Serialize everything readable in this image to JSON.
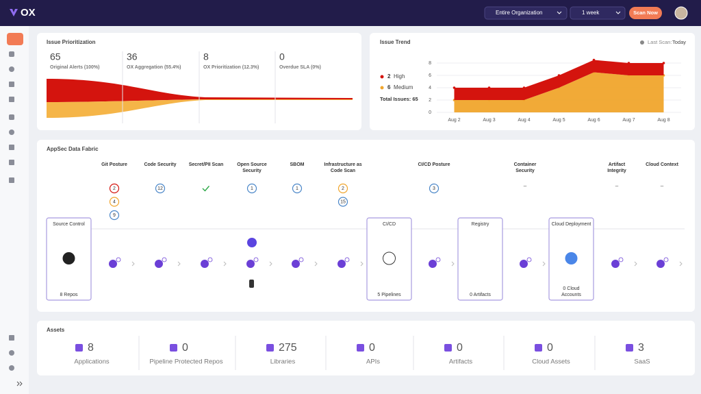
{
  "header": {
    "logo": "OX",
    "organization": "Entire Organization",
    "period": "1 week",
    "scan_button": "Scan Now"
  },
  "issue_prioritization": {
    "title": "Issue Prioritization",
    "stages": [
      {
        "value": 65,
        "label": "Original Alerts (100%)"
      },
      {
        "value": 36,
        "label": "OX Aggregation (55.4%)"
      },
      {
        "value": 8,
        "label": "OX Prioritization (12.3%)"
      },
      {
        "value": 0,
        "label": "Overdue SLA (0%)"
      }
    ]
  },
  "issue_trend": {
    "title": "Issue Trend",
    "last_scan_label": "Last Scan:",
    "last_scan": "Today",
    "total": "Total Issues: 65",
    "chart": {
      "type": "area",
      "stacked": true,
      "categories": [
        "Aug 2",
        "Aug 3",
        "Aug 4",
        "Aug 5",
        "Aug 6",
        "Aug 7",
        "Aug 8"
      ],
      "ylim": [
        0,
        9
      ],
      "yticks": [
        0,
        2,
        4,
        6,
        8
      ],
      "series": [
        {
          "name": "Medium",
          "count": 6,
          "color": "#f0a52c",
          "values": [
            2,
            2,
            2,
            4,
            6.5,
            6,
            6
          ]
        },
        {
          "name": "High",
          "count": 2,
          "color": "#d4140e",
          "values": [
            2,
            2,
            2,
            2,
            2,
            2,
            2
          ]
        }
      ]
    }
  },
  "appsec_fabric": {
    "title": "AppSec Data Fabric",
    "columns": [
      {
        "name": "Git Posture",
        "badges": [
          {
            "value": 2,
            "color": "#d4140e"
          },
          {
            "value": 4,
            "color": "#f0a52c"
          },
          {
            "value": 9,
            "color": "#4a86c8"
          }
        ]
      },
      {
        "name": "Code Security",
        "badges": [
          {
            "value": 12,
            "color": "#4a86c8"
          }
        ]
      },
      {
        "name": "Secret/PII Scan",
        "badges": [],
        "passed": true
      },
      {
        "name": "Open Source Security",
        "badges": [
          {
            "value": 1,
            "color": "#4a86c8"
          }
        ]
      },
      {
        "name": "SBOM",
        "badges": [
          {
            "value": 1,
            "color": "#4a86c8"
          }
        ]
      },
      {
        "name": "Infrastructure as Code Scan",
        "badges": [
          {
            "value": 2,
            "color": "#f0a52c"
          },
          {
            "value": 15,
            "color": "#4a86c8"
          }
        ]
      },
      {
        "name": "CI/CD Posture",
        "badges": [
          {
            "value": 3,
            "color": "#4a86c8"
          }
        ]
      },
      {
        "name": "Container Security",
        "badges": [],
        "placeholder": "–"
      },
      {
        "name": "Artifact Integrity",
        "badges": [],
        "placeholder": "–"
      },
      {
        "name": "Cloud Context",
        "badges": [],
        "placeholder": "–"
      }
    ],
    "stages": [
      {
        "name": "Source Control",
        "count": "8 Repos"
      },
      {
        "name": "CI/CD",
        "count": "5 Pipelines"
      },
      {
        "name": "Registry",
        "count": "0 Artifacts"
      },
      {
        "name": "Cloud Deployment",
        "count": "0 Cloud Accounts"
      }
    ]
  },
  "assets": {
    "title": "Assets",
    "items": [
      {
        "value": 8,
        "label": "Applications"
      },
      {
        "value": 0,
        "label": "Pipeline Protected Repos"
      },
      {
        "value": 275,
        "label": "Libraries"
      },
      {
        "value": 0,
        "label": "APIs"
      },
      {
        "value": 0,
        "label": "Artifacts"
      },
      {
        "value": 0,
        "label": "Cloud Assets"
      },
      {
        "value": 3,
        "label": "SaaS"
      }
    ]
  }
}
